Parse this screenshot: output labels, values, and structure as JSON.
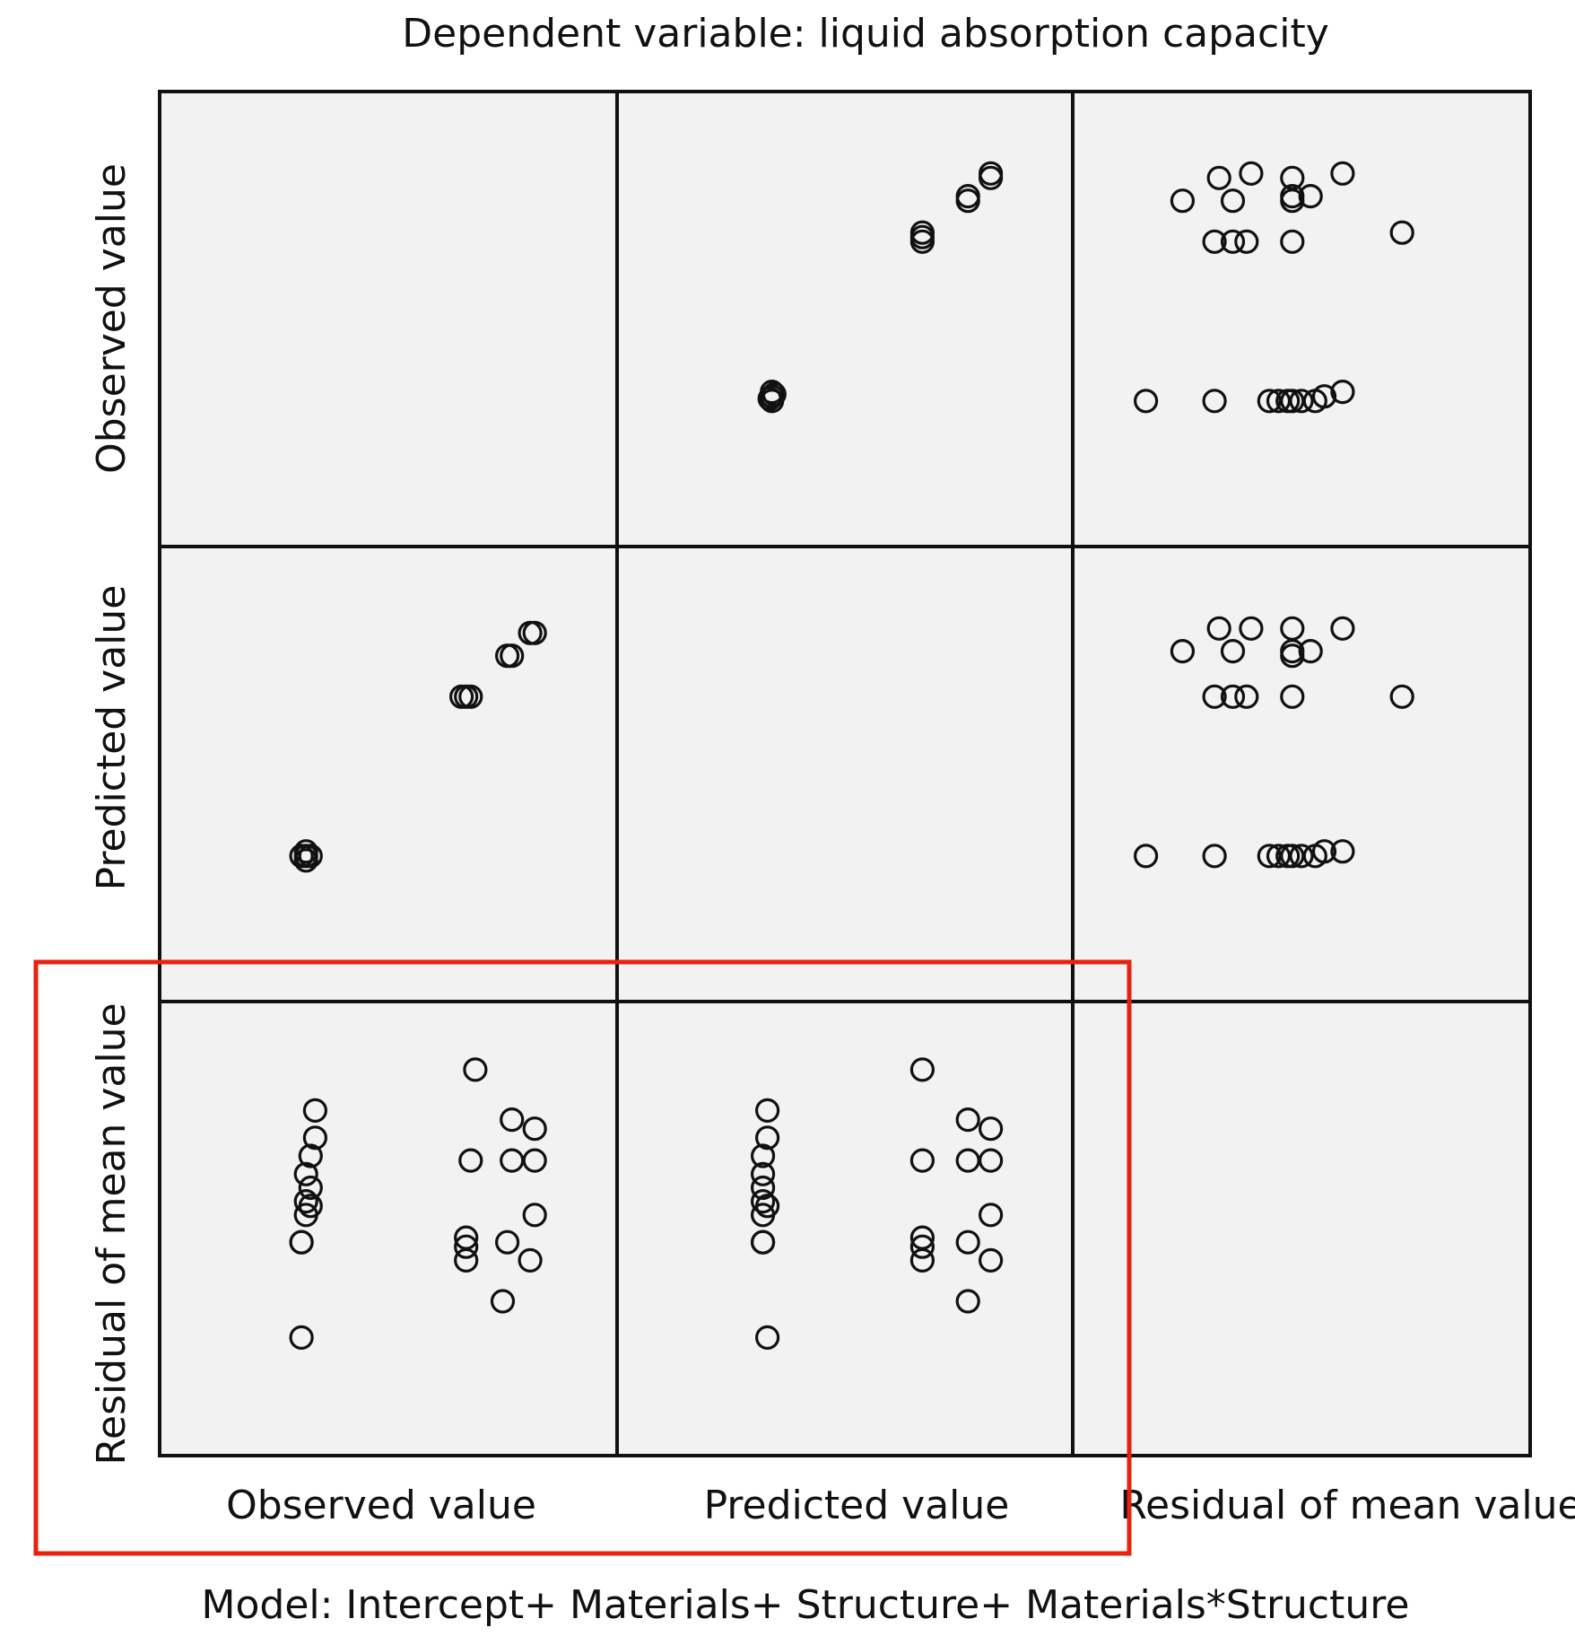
{
  "chart_data": {
    "type": "scatter",
    "subtype": "scatterplot-matrix",
    "title": "Dependent variable: liquid absorption capacity",
    "footer": "Model: Intercept+ Materials+ Structure+ Materials*Structure",
    "variables": [
      "Observed value",
      "Predicted value",
      "Residual of mean value"
    ],
    "row_labels": [
      "Observed value",
      "Predicted value",
      "Residual of mean value"
    ],
    "col_labels": [
      "Observed value",
      "Predicted value",
      "Residual of mean value"
    ],
    "highlight": {
      "rows": [
        3
      ],
      "cols": [
        1,
        2
      ],
      "color": "#e8220f"
    },
    "panels": [
      {
        "row": 1,
        "col": 2,
        "x": "Predicted value",
        "y": "Observed value",
        "xlim": [
          0,
          1
        ],
        "ylim": [
          0,
          1
        ],
        "points": [
          [
            0.34,
            0.33
          ],
          [
            0.34,
            0.32
          ],
          [
            0.34,
            0.34
          ],
          [
            0.335,
            0.325
          ],
          [
            0.345,
            0.335
          ],
          [
            0.67,
            0.68
          ],
          [
            0.67,
            0.67
          ],
          [
            0.67,
            0.69
          ],
          [
            0.77,
            0.77
          ],
          [
            0.77,
            0.76
          ],
          [
            0.82,
            0.82
          ],
          [
            0.82,
            0.81
          ]
        ]
      },
      {
        "row": 1,
        "col": 3,
        "x": "Residual of mean value",
        "y": "Observed value",
        "xlim": [
          0,
          1
        ],
        "ylim": [
          0,
          1
        ],
        "points": [
          [
            0.24,
            0.76
          ],
          [
            0.32,
            0.81
          ],
          [
            0.35,
            0.76
          ],
          [
            0.39,
            0.82
          ],
          [
            0.48,
            0.81
          ],
          [
            0.48,
            0.77
          ],
          [
            0.48,
            0.76
          ],
          [
            0.59,
            0.82
          ],
          [
            0.52,
            0.77
          ],
          [
            0.72,
            0.69
          ],
          [
            0.31,
            0.67
          ],
          [
            0.35,
            0.67
          ],
          [
            0.38,
            0.67
          ],
          [
            0.48,
            0.67
          ],
          [
            0.16,
            0.32
          ],
          [
            0.31,
            0.32
          ],
          [
            0.43,
            0.32
          ],
          [
            0.45,
            0.32
          ],
          [
            0.47,
            0.32
          ],
          [
            0.48,
            0.32
          ],
          [
            0.5,
            0.32
          ],
          [
            0.53,
            0.32
          ],
          [
            0.55,
            0.33
          ],
          [
            0.59,
            0.34
          ]
        ]
      },
      {
        "row": 2,
        "col": 1,
        "x": "Observed value",
        "y": "Predicted value",
        "xlim": [
          0,
          1
        ],
        "ylim": [
          0,
          1
        ],
        "points": [
          [
            0.32,
            0.32
          ],
          [
            0.31,
            0.32
          ],
          [
            0.33,
            0.32
          ],
          [
            0.32,
            0.33
          ],
          [
            0.32,
            0.31
          ],
          [
            0.67,
            0.67
          ],
          [
            0.68,
            0.67
          ],
          [
            0.66,
            0.67
          ],
          [
            0.77,
            0.76
          ],
          [
            0.76,
            0.76
          ],
          [
            0.82,
            0.81
          ],
          [
            0.81,
            0.81
          ]
        ]
      },
      {
        "row": 2,
        "col": 3,
        "x": "Residual of mean value",
        "y": "Predicted value",
        "xlim": [
          0,
          1
        ],
        "ylim": [
          0,
          1
        ],
        "points": [
          [
            0.24,
            0.77
          ],
          [
            0.32,
            0.82
          ],
          [
            0.35,
            0.77
          ],
          [
            0.39,
            0.82
          ],
          [
            0.48,
            0.82
          ],
          [
            0.48,
            0.77
          ],
          [
            0.48,
            0.76
          ],
          [
            0.59,
            0.82
          ],
          [
            0.52,
            0.77
          ],
          [
            0.31,
            0.67
          ],
          [
            0.35,
            0.67
          ],
          [
            0.38,
            0.67
          ],
          [
            0.48,
            0.67
          ],
          [
            0.72,
            0.67
          ],
          [
            0.16,
            0.32
          ],
          [
            0.31,
            0.32
          ],
          [
            0.43,
            0.32
          ],
          [
            0.45,
            0.32
          ],
          [
            0.47,
            0.32
          ],
          [
            0.48,
            0.32
          ],
          [
            0.5,
            0.32
          ],
          [
            0.53,
            0.32
          ],
          [
            0.55,
            0.33
          ],
          [
            0.59,
            0.33
          ]
        ]
      },
      {
        "row": 3,
        "col": 1,
        "x": "Observed value",
        "y": "Residual of mean value",
        "xlim": [
          0,
          1
        ],
        "ylim": [
          0,
          1
        ],
        "points": [
          [
            0.34,
            0.76
          ],
          [
            0.34,
            0.7
          ],
          [
            0.33,
            0.66
          ],
          [
            0.32,
            0.62
          ],
          [
            0.33,
            0.59
          ],
          [
            0.32,
            0.56
          ],
          [
            0.33,
            0.55
          ],
          [
            0.32,
            0.53
          ],
          [
            0.31,
            0.47
          ],
          [
            0.31,
            0.47
          ],
          [
            0.31,
            0.26
          ],
          [
            0.69,
            0.85
          ],
          [
            0.68,
            0.65
          ],
          [
            0.77,
            0.74
          ],
          [
            0.82,
            0.72
          ],
          [
            0.77,
            0.65
          ],
          [
            0.82,
            0.65
          ],
          [
            0.82,
            0.53
          ],
          [
            0.67,
            0.48
          ],
          [
            0.67,
            0.46
          ],
          [
            0.67,
            0.43
          ],
          [
            0.76,
            0.47
          ],
          [
            0.81,
            0.43
          ],
          [
            0.75,
            0.34
          ]
        ]
      },
      {
        "row": 3,
        "col": 2,
        "x": "Predicted value",
        "y": "Residual of mean value",
        "xlim": [
          0,
          1
        ],
        "ylim": [
          0,
          1
        ],
        "points": [
          [
            0.33,
            0.76
          ],
          [
            0.33,
            0.7
          ],
          [
            0.32,
            0.66
          ],
          [
            0.32,
            0.62
          ],
          [
            0.32,
            0.59
          ],
          [
            0.32,
            0.56
          ],
          [
            0.33,
            0.55
          ],
          [
            0.32,
            0.53
          ],
          [
            0.32,
            0.47
          ],
          [
            0.32,
            0.47
          ],
          [
            0.33,
            0.26
          ],
          [
            0.67,
            0.85
          ],
          [
            0.67,
            0.65
          ],
          [
            0.77,
            0.74
          ],
          [
            0.82,
            0.72
          ],
          [
            0.77,
            0.65
          ],
          [
            0.82,
            0.65
          ],
          [
            0.82,
            0.53
          ],
          [
            0.67,
            0.48
          ],
          [
            0.67,
            0.46
          ],
          [
            0.67,
            0.43
          ],
          [
            0.77,
            0.47
          ],
          [
            0.82,
            0.43
          ],
          [
            0.77,
            0.34
          ]
        ]
      }
    ]
  }
}
